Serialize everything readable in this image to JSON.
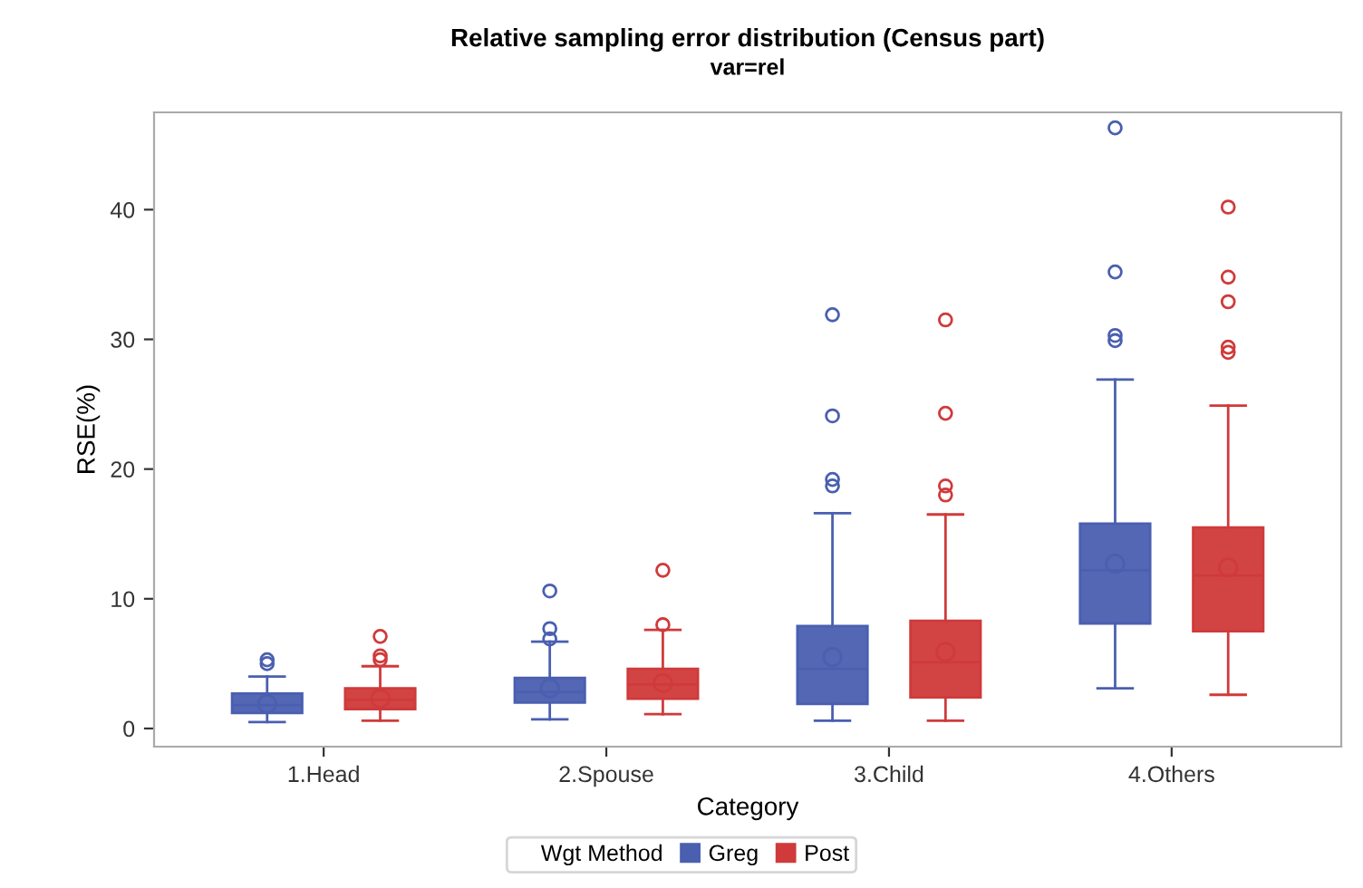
{
  "chart_data": {
    "type": "box",
    "title": "Relative sampling error distribution (Census part)",
    "subtitle": "var=rel",
    "xlabel": "Category",
    "ylabel": "RSE(%)",
    "legend_title": "Wgt Method",
    "legend": "bottom",
    "categories": [
      "1.Head",
      "2.Spouse",
      "3.Child",
      "4.Others"
    ],
    "ylim": [
      -1.4,
      47.5
    ],
    "yticks": [
      0,
      10,
      20,
      30,
      40
    ],
    "grid": false,
    "series": [
      {
        "name": "Greg",
        "color": "#4a5fb0",
        "boxes": [
          {
            "low": 0.5,
            "q1": 1.2,
            "median": 1.8,
            "q3": 2.7,
            "high": 4.0,
            "mean": 1.9,
            "outliers": [
              5.0,
              5.3
            ]
          },
          {
            "low": 0.7,
            "q1": 2.0,
            "median": 2.8,
            "q3": 3.9,
            "high": 6.7,
            "mean": 3.1,
            "outliers": [
              6.9,
              7.7,
              10.6
            ]
          },
          {
            "low": 0.6,
            "q1": 1.9,
            "median": 4.6,
            "q3": 7.9,
            "high": 16.6,
            "mean": 5.5,
            "outliers": [
              18.7,
              19.2,
              24.1,
              31.9
            ]
          },
          {
            "low": 3.1,
            "q1": 8.1,
            "median": 12.2,
            "q3": 15.8,
            "high": 26.9,
            "mean": 12.7,
            "outliers": [
              29.9,
              30.3,
              35.2,
              46.3
            ]
          }
        ]
      },
      {
        "name": "Post",
        "color": "#d03a3a",
        "boxes": [
          {
            "low": 0.6,
            "q1": 1.5,
            "median": 2.2,
            "q3": 3.1,
            "high": 4.8,
            "mean": 2.3,
            "outliers": [
              5.3,
              5.6,
              7.1
            ]
          },
          {
            "low": 1.1,
            "q1": 2.3,
            "median": 3.4,
            "q3": 4.6,
            "high": 7.6,
            "mean": 3.5,
            "outliers": [
              8.0,
              12.2
            ]
          },
          {
            "low": 0.6,
            "q1": 2.4,
            "median": 5.1,
            "q3": 8.3,
            "high": 16.5,
            "mean": 5.9,
            "outliers": [
              18.0,
              18.7,
              24.3,
              31.5
            ]
          },
          {
            "low": 2.6,
            "q1": 7.5,
            "median": 11.8,
            "q3": 15.5,
            "high": 24.9,
            "mean": 12.4,
            "outliers": [
              29.0,
              29.4,
              32.9,
              34.8,
              40.2
            ]
          }
        ]
      }
    ]
  }
}
